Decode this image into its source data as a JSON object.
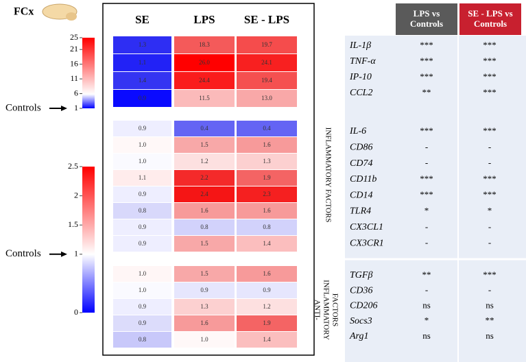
{
  "chart_data": {
    "type": "heatmap",
    "title": "FCx",
    "columns": [
      "SE",
      "LPS",
      "SE - LPS"
    ],
    "colorbars": [
      {
        "lim": [
          1,
          25
        ],
        "ticks": [
          25,
          21,
          16,
          11,
          6,
          1
        ],
        "colors": [
          "#0000ff",
          "#ffffff",
          "#ff0000"
        ],
        "annotation": {
          "text": "Controls",
          "value": 1
        }
      },
      {
        "lim": [
          0,
          2.5
        ],
        "ticks": [
          2.5,
          2,
          1.5,
          1,
          0
        ],
        "colors": [
          "#0000ff",
          "#ffffff",
          "#ff0000"
        ],
        "annotation": {
          "text": "Controls",
          "value": 1
        }
      }
    ],
    "groups": [
      {
        "colorbar": 0,
        "rows": [
          {
            "values": [
              1.3,
              18.3,
              19.7
            ],
            "value_labels": [
              "1.3",
              "18.3",
              "19.7"
            ],
            "colors": [
              "#2e2ef3",
              "#f45a5a",
              "#f54c4c"
            ]
          },
          {
            "values": [
              1.1,
              26.0,
              24.1
            ],
            "value_labels": [
              "1.1",
              "26.0",
              "24.1"
            ],
            "colors": [
              "#2222f6",
              "#ff0000",
              "#f82020"
            ]
          },
          {
            "values": [
              1.4,
              24.4,
              19.4
            ],
            "value_labels": [
              "1.4",
              "24.4",
              "19.4"
            ],
            "colors": [
              "#3434f2",
              "#fa1c1c",
              "#f55050"
            ]
          },
          {
            "values": [
              0.9,
              11.5,
              13.0
            ],
            "value_labels": [
              "0.9",
              "11.5",
              "13.0"
            ],
            "colors": [
              "#0a0aff",
              "#fbbaba",
              "#f9a8a8"
            ]
          }
        ]
      },
      {
        "colorbar": 1,
        "rows": [
          {
            "values": [
              0.9,
              0.4,
              0.4
            ],
            "value_labels": [
              "0.9",
              "0.4",
              "0.4"
            ],
            "colors": [
              "#eeeeff",
              "#6464f4",
              "#6464f4"
            ]
          },
          {
            "values": [
              1.0,
              1.5,
              1.6
            ],
            "value_labels": [
              "1.0",
              "1.5",
              "1.6"
            ],
            "colors": [
              "#fff8f8",
              "#f8a8a8",
              "#f79a9a"
            ]
          },
          {
            "values": [
              1.0,
              1.2,
              1.3
            ],
            "value_labels": [
              "1.0",
              "1.2",
              "1.3"
            ],
            "colors": [
              "#fafaff",
              "#fde0e0",
              "#fcd0d0"
            ]
          },
          {
            "values": [
              1.1,
              2.2,
              1.9
            ],
            "value_labels": [
              "1.1",
              "2.2",
              "1.9"
            ],
            "colors": [
              "#ffecec",
              "#f42a2a",
              "#f46464"
            ]
          },
          {
            "values": [
              0.9,
              2.4,
              2.3
            ],
            "value_labels": [
              "0.9",
              "2.4",
              "2.3"
            ],
            "colors": [
              "#eeeeff",
              "#f51515",
              "#f52020"
            ]
          },
          {
            "values": [
              0.8,
              1.6,
              1.6
            ],
            "value_labels": [
              "0.8",
              "1.6",
              "1.6"
            ],
            "colors": [
              "#d8d8fb",
              "#f79a9a",
              "#f79a9a"
            ]
          },
          {
            "values": [
              0.9,
              0.8,
              0.8
            ],
            "value_labels": [
              "0.9",
              "0.8",
              "0.8"
            ],
            "colors": [
              "#eeeeff",
              "#d2d2fb",
              "#d2d2fb"
            ]
          },
          {
            "values": [
              0.9,
              1.5,
              1.4
            ],
            "value_labels": [
              "0.9",
              "1.5",
              "1.4"
            ],
            "colors": [
              "#eeeeff",
              "#f8a8a8",
              "#fbbebe"
            ]
          }
        ]
      },
      {
        "colorbar": 1,
        "rows": [
          {
            "values": [
              1.0,
              1.5,
              1.6
            ],
            "value_labels": [
              "1.0",
              "1.5",
              "1.6"
            ],
            "colors": [
              "#fff6f6",
              "#f8a8a8",
              "#f79a9a"
            ]
          },
          {
            "values": [
              1.0,
              0.9,
              0.9
            ],
            "value_labels": [
              "1.0",
              "0.9",
              "0.9"
            ],
            "colors": [
              "#fafaff",
              "#e6e6fd",
              "#e6e6fd"
            ]
          },
          {
            "values": [
              0.9,
              1.3,
              1.2
            ],
            "value_labels": [
              "0.9",
              "1.3",
              "1.2"
            ],
            "colors": [
              "#eeeeff",
              "#fcd0d0",
              "#fde0e0"
            ]
          },
          {
            "values": [
              0.9,
              1.6,
              1.9
            ],
            "value_labels": [
              "0.9",
              "1.6",
              "1.9"
            ],
            "colors": [
              "#dcdcfb",
              "#f79a9a",
              "#f46464"
            ]
          },
          {
            "values": [
              0.8,
              1.0,
              1.4
            ],
            "value_labels": [
              "0.8",
              "1.0",
              "1.4"
            ],
            "colors": [
              "#c8c8fa",
              "#fff8f8",
              "#fbbebe"
            ]
          }
        ]
      }
    ]
  },
  "table": {
    "headers": [
      "LPS vs Controls",
      "SE - LPS vs Controls"
    ],
    "rows": [
      [
        "IL-1β",
        "***",
        "***"
      ],
      [
        "TNF-α",
        "***",
        "***"
      ],
      [
        "IP-10",
        "***",
        "***"
      ],
      [
        "CCL2",
        "**",
        "***"
      ],
      [
        "IL-6",
        "***",
        "***"
      ],
      [
        "CD86",
        "-",
        "-"
      ],
      [
        "CD74",
        "-",
        "-"
      ],
      [
        "CD11b",
        "***",
        "***"
      ],
      [
        "CD14",
        "***",
        "***"
      ],
      [
        "TLR4",
        "*",
        "*"
      ],
      [
        "CX3CL1",
        "-",
        "-"
      ],
      [
        "CX3CR1",
        "-",
        "-"
      ],
      [
        "TGFβ",
        "**",
        "***"
      ],
      [
        "CD36",
        "-",
        "-"
      ],
      [
        "CD206",
        "ns",
        "ns"
      ],
      [
        "Socs3",
        "*",
        "**"
      ],
      [
        "Arg1",
        "ns",
        "ns"
      ]
    ],
    "sections": [
      [
        "INFLAMMATORY FACTORS"
      ],
      [
        "ANTI-",
        "INFLAMMATORY",
        "FACTORS"
      ]
    ]
  }
}
